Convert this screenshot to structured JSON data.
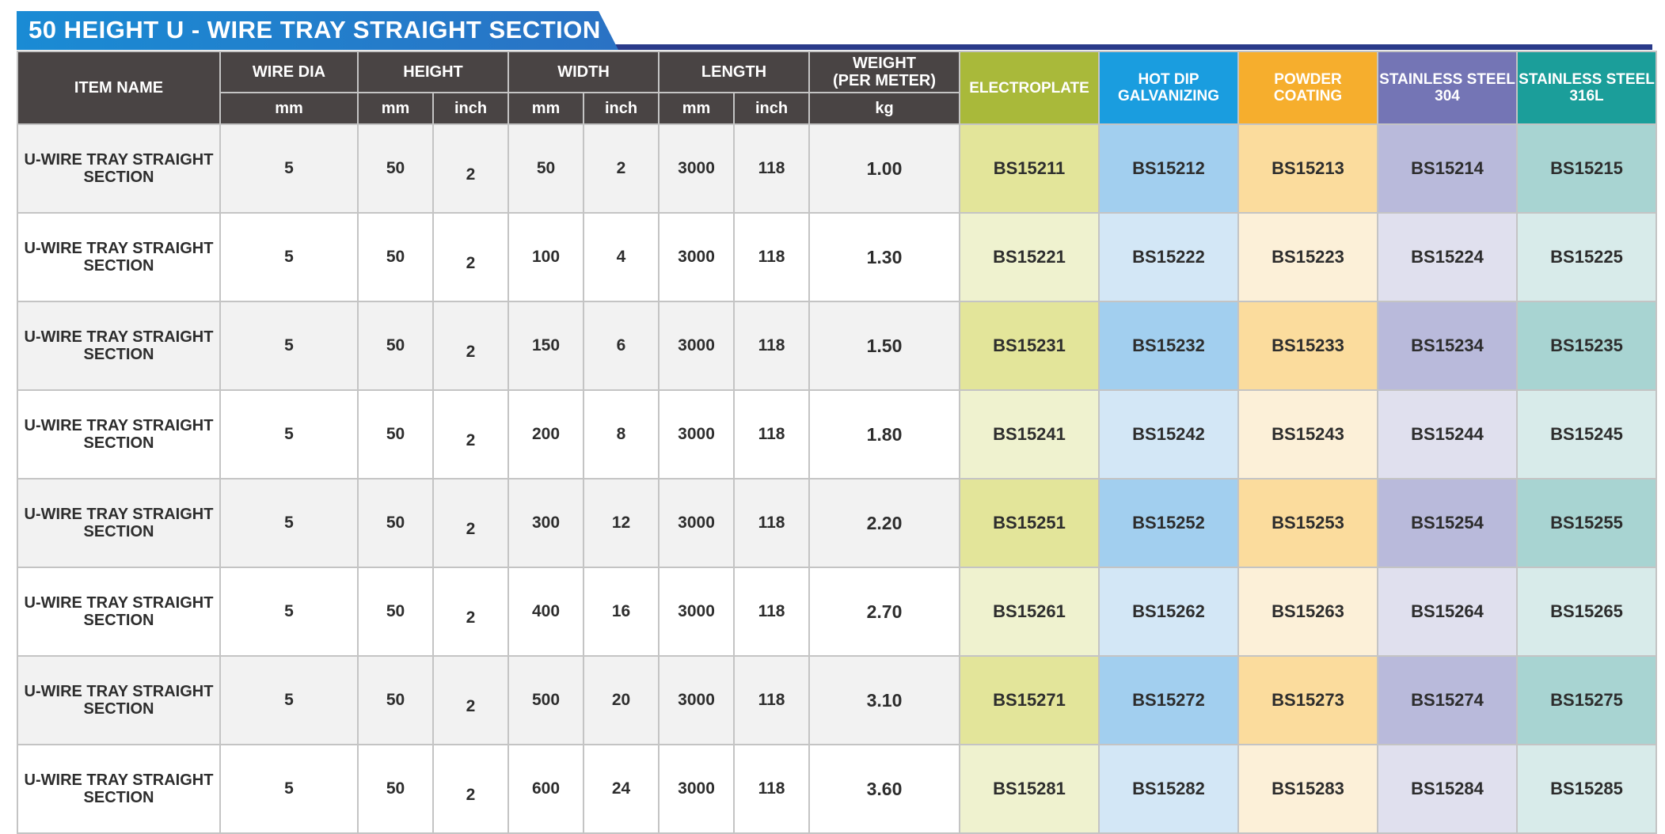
{
  "title": "50 HEIGHT U - WIRE TRAY STRAIGHT SECTION",
  "colors": {
    "title_bar": "#1a8bd4",
    "header": "#494444",
    "electroplate": "#a9b93a",
    "hot_dip": "#1a9ddf",
    "powder": "#f6ae2d",
    "ss304": "#7475b5",
    "ss316l": "#1b9e9a"
  },
  "headers": {
    "item_name": "ITEM NAME",
    "wire_dia": "WIRE DIA",
    "height": "HEIGHT",
    "width": "WIDTH",
    "length": "LENGTH",
    "weight": "WEIGHT\n(PER METER)",
    "electroplate": "ELECTROPLATE",
    "hot_dip": "HOT DIP\nGALVANIZING",
    "powder": "POWDER\nCOATING",
    "ss304": "STAINLESS STEEL\n304",
    "ss316l": "STAINLESS STEEL\n316L"
  },
  "units": {
    "wire_dia": "mm",
    "height_mm": "mm",
    "height_inch": "inch",
    "width_mm": "mm",
    "width_inch": "inch",
    "length_mm": "mm",
    "length_inch": "inch",
    "weight": "kg"
  },
  "rows": [
    {
      "name": "U-WIRE TRAY STRAIGHT\nSECTION",
      "wire_dia": "5",
      "height_mm": "50",
      "height_inch": "2",
      "width_mm": "50",
      "width_inch": "2",
      "length_mm": "3000",
      "length_inch": "118",
      "weight": "1.00",
      "electroplate": "BS15211",
      "hot_dip": "BS15212",
      "powder": "BS15213",
      "ss304": "BS15214",
      "ss316l": "BS15215"
    },
    {
      "name": "U-WIRE TRAY STRAIGHT\nSECTION",
      "wire_dia": "5",
      "height_mm": "50",
      "height_inch": "2",
      "width_mm": "100",
      "width_inch": "4",
      "length_mm": "3000",
      "length_inch": "118",
      "weight": "1.30",
      "electroplate": "BS15221",
      "hot_dip": "BS15222",
      "powder": "BS15223",
      "ss304": "BS15224",
      "ss316l": "BS15225"
    },
    {
      "name": "U-WIRE TRAY STRAIGHT\nSECTION",
      "wire_dia": "5",
      "height_mm": "50",
      "height_inch": "2",
      "width_mm": "150",
      "width_inch": "6",
      "length_mm": "3000",
      "length_inch": "118",
      "weight": "1.50",
      "electroplate": "BS15231",
      "hot_dip": "BS15232",
      "powder": "BS15233",
      "ss304": "BS15234",
      "ss316l": "BS15235"
    },
    {
      "name": "U-WIRE TRAY STRAIGHT\nSECTION",
      "wire_dia": "5",
      "height_mm": "50",
      "height_inch": "2",
      "width_mm": "200",
      "width_inch": "8",
      "length_mm": "3000",
      "length_inch": "118",
      "weight": "1.80",
      "electroplate": "BS15241",
      "hot_dip": "BS15242",
      "powder": "BS15243",
      "ss304": "BS15244",
      "ss316l": "BS15245"
    },
    {
      "name": "U-WIRE TRAY STRAIGHT\nSECTION",
      "wire_dia": "5",
      "height_mm": "50",
      "height_inch": "2",
      "width_mm": "300",
      "width_inch": "12",
      "length_mm": "3000",
      "length_inch": "118",
      "weight": "2.20",
      "electroplate": "BS15251",
      "hot_dip": "BS15252",
      "powder": "BS15253",
      "ss304": "BS15254",
      "ss316l": "BS15255"
    },
    {
      "name": "U-WIRE TRAY STRAIGHT\nSECTION",
      "wire_dia": "5",
      "height_mm": "50",
      "height_inch": "2",
      "width_mm": "400",
      "width_inch": "16",
      "length_mm": "3000",
      "length_inch": "118",
      "weight": "2.70",
      "electroplate": "BS15261",
      "hot_dip": "BS15262",
      "powder": "BS15263",
      "ss304": "BS15264",
      "ss316l": "BS15265"
    },
    {
      "name": "U-WIRE TRAY STRAIGHT\nSECTION",
      "wire_dia": "5",
      "height_mm": "50",
      "height_inch": "2",
      "width_mm": "500",
      "width_inch": "20",
      "length_mm": "3000",
      "length_inch": "118",
      "weight": "3.10",
      "electroplate": "BS15271",
      "hot_dip": "BS15272",
      "powder": "BS15273",
      "ss304": "BS15274",
      "ss316l": "BS15275"
    },
    {
      "name": "U-WIRE TRAY STRAIGHT\nSECTION",
      "wire_dia": "5",
      "height_mm": "50",
      "height_inch": "2",
      "width_mm": "600",
      "width_inch": "24",
      "length_mm": "3000",
      "length_inch": "118",
      "weight": "3.60",
      "electroplate": "BS15281",
      "hot_dip": "BS15282",
      "powder": "BS15283",
      "ss304": "BS15284",
      "ss316l": "BS15285"
    }
  ]
}
